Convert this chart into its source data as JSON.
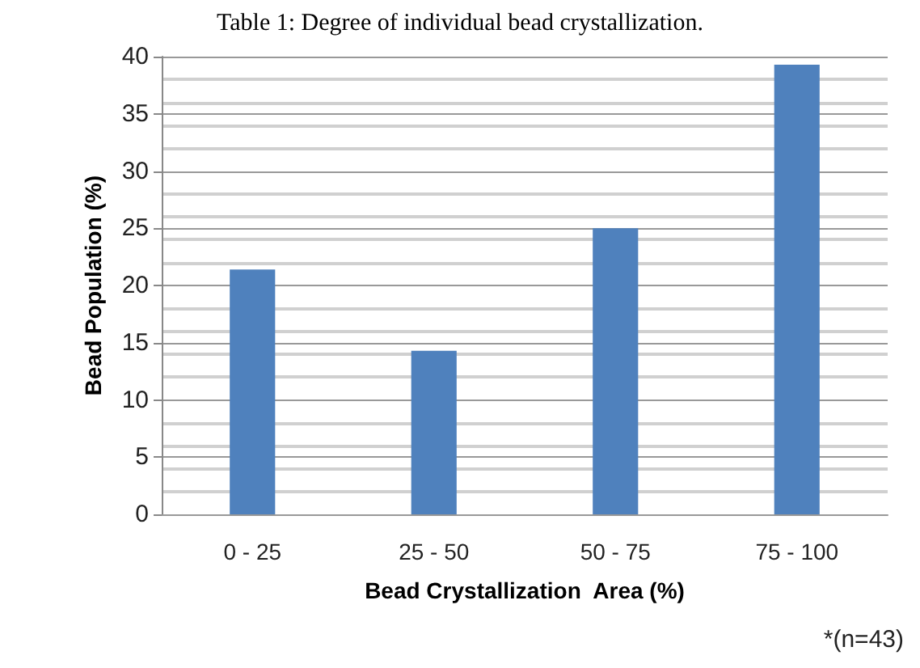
{
  "chart_data": {
    "type": "bar",
    "title": "Table 1: Degree of individual bead crystallization.",
    "xlabel": "Bead Crystallization  Area (%)",
    "ylabel": "Bead Population (%)",
    "categories": [
      "0 - 25",
      "25 - 50",
      "50 - 75",
      "75 - 100"
    ],
    "values": [
      21.4,
      14.3,
      25,
      39.3
    ],
    "color": "#4f81bd",
    "ylim": [
      0,
      40
    ],
    "yticks": [
      0,
      5,
      10,
      15,
      20,
      25,
      30,
      35,
      40
    ],
    "grid": "y",
    "annotations": [
      "*(n=43)"
    ]
  }
}
